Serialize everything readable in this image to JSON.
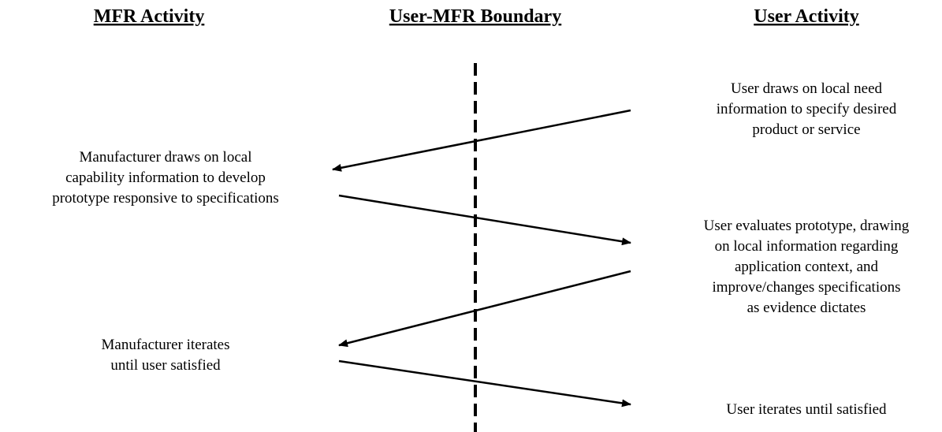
{
  "columns": {
    "left": "MFR Activity",
    "middle": "User-MFR Boundary",
    "right": "User Activity"
  },
  "nodes": [
    {
      "side": "right",
      "lines": [
        "User draws on local need",
        "information to specify desired",
        "product or service"
      ]
    },
    {
      "side": "left",
      "lines": [
        "Manufacturer draws on local",
        "capability information to develop",
        "prototype responsive to specifications"
      ]
    },
    {
      "side": "right",
      "lines": [
        "User evaluates prototype, drawing",
        "on local information regarding",
        "application context, and",
        "improve/changes specifications",
        "as evidence dictates"
      ]
    },
    {
      "side": "left",
      "lines": [
        "Manufacturer iterates",
        "until user satisfied"
      ]
    },
    {
      "side": "right",
      "lines": [
        "User iterates until satisfied"
      ]
    }
  ]
}
